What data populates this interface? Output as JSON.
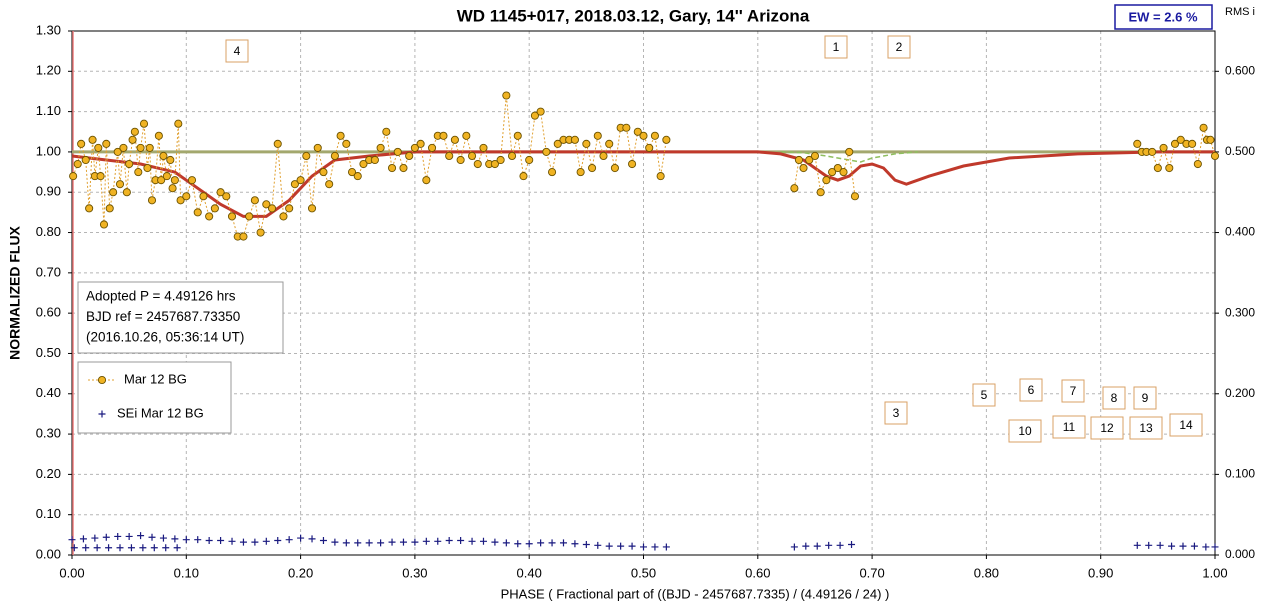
{
  "chart_data": {
    "type": "scatter",
    "title": "WD 1145+017, 2018.03.12, Gary, 14'' Arizona",
    "xlabel": "PHASE  ( Fractional part of ((BJD - 2457687.7335)  / (4.49126  / 24) )",
    "ylabel": "NORMALIZED  FLUX",
    "y2label": "RMS i",
    "ew_label": "EW =  2.6 %",
    "notes": [
      "Adopted P = 4.49126 hrs",
      "BJD ref = 2457687.73350",
      "(2016.10.26, 05:36:14 UT)"
    ],
    "annotations": [
      "1",
      "2",
      "3",
      "4",
      "5",
      "6",
      "7",
      "8",
      "9",
      "10",
      "11",
      "12",
      "13",
      "14"
    ],
    "grid": true,
    "xlim": [
      0,
      1
    ],
    "xticks": [
      {
        "value": 0,
        "label": "0.00"
      },
      {
        "value": 0.1,
        "label": "0.10"
      },
      {
        "value": 0.2,
        "label": "0.20"
      },
      {
        "value": 0.3,
        "label": "0.30"
      },
      {
        "value": 0.4,
        "label": "0.40"
      },
      {
        "value": 0.5,
        "label": "0.50"
      },
      {
        "value": 0.6,
        "label": "0.60"
      },
      {
        "value": 0.7,
        "label": "0.70"
      },
      {
        "value": 0.8,
        "label": "0.80"
      },
      {
        "value": 0.9,
        "label": "0.90"
      },
      {
        "value": 1,
        "label": "1.00"
      }
    ],
    "ylim": [
      0,
      1.3
    ],
    "yticks": [
      {
        "value": 0,
        "label": "0.00"
      },
      {
        "value": 0.1,
        "label": "0.10"
      },
      {
        "value": 0.2,
        "label": "0.20"
      },
      {
        "value": 0.3,
        "label": "0.30"
      },
      {
        "value": 0.4,
        "label": "0.40"
      },
      {
        "value": 0.5,
        "label": "0.50"
      },
      {
        "value": 0.6,
        "label": "0.60"
      },
      {
        "value": 0.7,
        "label": "0.70"
      },
      {
        "value": 0.8,
        "label": "0.80"
      },
      {
        "value": 0.9,
        "label": "0.90"
      },
      {
        "value": 1,
        "label": "1.00"
      },
      {
        "value": 1.1,
        "label": "1.10"
      },
      {
        "value": 1.2,
        "label": "1.20"
      },
      {
        "value": 1.3,
        "label": "1.30"
      }
    ],
    "y2lim": [
      0,
      0.65
    ],
    "y2ticks": [
      {
        "value": 0,
        "label": "0.000"
      },
      {
        "value": 0.1,
        "label": "0.100"
      },
      {
        "value": 0.2,
        "label": "0.200"
      },
      {
        "value": 0.3,
        "label": "0.300"
      },
      {
        "value": 0.4,
        "label": "0.400"
      },
      {
        "value": 0.5,
        "label": "0.500"
      },
      {
        "value": 0.6,
        "label": "0.600"
      }
    ],
    "series": [
      {
        "name": "Mar 12 BG",
        "color": "#f0b323",
        "marker": "circle",
        "connect": "dotted",
        "x": [
          0.001,
          0.005,
          0.008,
          0.012,
          0.015,
          0.018,
          0.02,
          0.023,
          0.025,
          0.028,
          0.03,
          0.033,
          0.036,
          0.04,
          0.042,
          0.045,
          0.048,
          0.05,
          0.053,
          0.055,
          0.058,
          0.06,
          0.063,
          0.066,
          0.068,
          0.07,
          0.073,
          0.076,
          0.078,
          0.08,
          0.083,
          0.086,
          0.088,
          0.09,
          0.093,
          0.095,
          0.1,
          0.105,
          0.11,
          0.115,
          0.12,
          0.125,
          0.13,
          0.135,
          0.14,
          0.145,
          0.15,
          0.155,
          0.16,
          0.165,
          0.17,
          0.175,
          0.18,
          0.185,
          0.19,
          0.195,
          0.2,
          0.205,
          0.21,
          0.215,
          0.22,
          0.225,
          0.23,
          0.235,
          0.24,
          0.245,
          0.25,
          0.255,
          0.26,
          0.265,
          0.27,
          0.275,
          0.28,
          0.285,
          0.29,
          0.295,
          0.3,
          0.305,
          0.31,
          0.315,
          0.32,
          0.325,
          0.33,
          0.335,
          0.34,
          0.345,
          0.35,
          0.355,
          0.36,
          0.365,
          0.37,
          0.375,
          0.38,
          0.385,
          0.39,
          0.395,
          0.4,
          0.405,
          0.41,
          0.415,
          0.42,
          0.425,
          0.43,
          0.435,
          0.44,
          0.445,
          0.45,
          0.455,
          0.46,
          0.465,
          0.47,
          0.475,
          0.48,
          0.485,
          0.49,
          0.495,
          0.5,
          0.505,
          0.51,
          0.515,
          0.52,
          0.632,
          0.636,
          0.64,
          0.645,
          0.65,
          0.655,
          0.66,
          0.665,
          0.67,
          0.675,
          0.68,
          0.685,
          0.932,
          0.936,
          0.94,
          0.945,
          0.95,
          0.955,
          0.96,
          0.965,
          0.97,
          0.975,
          0.98,
          0.985,
          0.99,
          0.993,
          0.996,
          1.0
        ],
        "values": [
          0.94,
          0.97,
          1.02,
          0.98,
          0.86,
          1.03,
          0.94,
          1.01,
          0.94,
          0.82,
          1.02,
          0.86,
          0.9,
          1.0,
          0.92,
          1.01,
          0.9,
          0.97,
          1.03,
          1.05,
          0.95,
          1.01,
          1.07,
          0.96,
          1.01,
          0.88,
          0.93,
          1.04,
          0.93,
          0.99,
          0.94,
          0.98,
          0.91,
          0.93,
          1.07,
          0.88,
          0.89,
          0.93,
          0.85,
          0.89,
          0.84,
          0.86,
          0.9,
          0.89,
          0.84,
          0.79,
          0.79,
          0.84,
          0.88,
          0.8,
          0.87,
          0.86,
          1.02,
          0.84,
          0.86,
          0.92,
          0.93,
          0.99,
          0.86,
          1.01,
          0.95,
          0.92,
          0.99,
          1.04,
          1.02,
          0.95,
          0.94,
          0.97,
          0.98,
          0.98,
          1.01,
          1.05,
          0.96,
          1.0,
          0.96,
          0.99,
          1.01,
          1.02,
          0.93,
          1.01,
          1.04,
          1.04,
          0.99,
          1.03,
          0.98,
          1.04,
          0.99,
          0.97,
          1.01,
          0.97,
          0.97,
          0.98,
          1.14,
          0.99,
          1.04,
          0.94,
          0.98,
          1.09,
          1.1,
          1.0,
          0.95,
          1.02,
          1.03,
          1.03,
          1.03,
          0.95,
          1.02,
          0.96,
          1.04,
          0.99,
          1.02,
          0.96,
          1.06,
          1.06,
          0.97,
          1.05,
          1.04,
          1.01,
          1.04,
          0.94,
          1.03,
          0.91,
          0.98,
          0.96,
          0.98,
          0.99,
          0.9,
          0.93,
          0.95,
          0.96,
          0.95,
          1.0,
          0.89,
          1.02,
          1.0,
          1.0,
          1.0,
          0.96,
          1.01,
          0.96,
          1.02,
          1.03,
          1.02,
          1.02,
          0.97,
          1.06,
          1.03,
          1.03,
          0.99
        ]
      },
      {
        "name": "SEi Mar 12 BG",
        "color": "#1a1a80",
        "marker": "plus",
        "axis": "y2",
        "x": [
          0,
          0.01,
          0.02,
          0.03,
          0.04,
          0.05,
          0.06,
          0.07,
          0.08,
          0.09,
          0.1,
          0.11,
          0.12,
          0.13,
          0.14,
          0.15,
          0.16,
          0.17,
          0.18,
          0.19,
          0.2,
          0.21,
          0.22,
          0.23,
          0.24,
          0.25,
          0.26,
          0.27,
          0.28,
          0.29,
          0.3,
          0.31,
          0.32,
          0.33,
          0.34,
          0.35,
          0.36,
          0.37,
          0.38,
          0.39,
          0.4,
          0.41,
          0.42,
          0.43,
          0.44,
          0.45,
          0.46,
          0.47,
          0.48,
          0.49,
          0.5,
          0.51,
          0.52,
          0.002,
          0.012,
          0.022,
          0.032,
          0.042,
          0.052,
          0.062,
          0.072,
          0.082,
          0.092,
          0.632,
          0.642,
          0.652,
          0.662,
          0.672,
          0.682,
          0.932,
          0.942,
          0.952,
          0.962,
          0.972,
          0.982,
          0.992,
          1.0
        ],
        "values": [
          0.019,
          0.02,
          0.021,
          0.022,
          0.023,
          0.023,
          0.024,
          0.022,
          0.021,
          0.02,
          0.019,
          0.019,
          0.018,
          0.018,
          0.017,
          0.016,
          0.016,
          0.017,
          0.018,
          0.019,
          0.021,
          0.02,
          0.018,
          0.016,
          0.015,
          0.015,
          0.015,
          0.015,
          0.016,
          0.016,
          0.016,
          0.017,
          0.017,
          0.018,
          0.018,
          0.017,
          0.017,
          0.016,
          0.015,
          0.014,
          0.014,
          0.015,
          0.015,
          0.015,
          0.014,
          0.013,
          0.012,
          0.011,
          0.011,
          0.011,
          0.01,
          0.01,
          0.01,
          0.009,
          0.009,
          0.009,
          0.009,
          0.009,
          0.009,
          0.009,
          0.009,
          0.009,
          0.009,
          0.01,
          0.011,
          0.011,
          0.012,
          0.012,
          0.013,
          0.012,
          0.012,
          0.012,
          0.011,
          0.011,
          0.011,
          0.01,
          0.01
        ]
      },
      {
        "color": "#a3a86e",
        "line": "solid",
        "x": [
          0,
          1
        ],
        "values": [
          1.0,
          1.0
        ]
      },
      {
        "color": "#8fbf5f",
        "line": "dashed",
        "x": [
          0.62,
          0.64,
          0.66,
          0.68,
          0.69,
          0.7,
          0.71,
          0.72,
          0.74
        ],
        "values": [
          1.0,
          0.998,
          0.99,
          0.98,
          0.975,
          0.985,
          0.99,
          0.995,
          1.0
        ]
      },
      {
        "color": "#c0392b",
        "line": "solid",
        "x": [
          0,
          0.03,
          0.06,
          0.09,
          0.11,
          0.13,
          0.15,
          0.17,
          0.19,
          0.21,
          0.23,
          0.26,
          0.3,
          0.6,
          0.62,
          0.64,
          0.66,
          0.67,
          0.68,
          0.69,
          0.7,
          0.71,
          0.72,
          0.73,
          0.75,
          0.78,
          0.82,
          0.88,
          0.95,
          1.0
        ],
        "values": [
          0.99,
          0.98,
          0.97,
          0.95,
          0.91,
          0.87,
          0.84,
          0.84,
          0.88,
          0.94,
          0.98,
          0.99,
          1.0,
          1.0,
          0.995,
          0.98,
          0.94,
          0.93,
          0.94,
          0.965,
          0.97,
          0.96,
          0.93,
          0.92,
          0.94,
          0.965,
          0.985,
          0.995,
          1.0,
          1.0
        ]
      }
    ]
  }
}
